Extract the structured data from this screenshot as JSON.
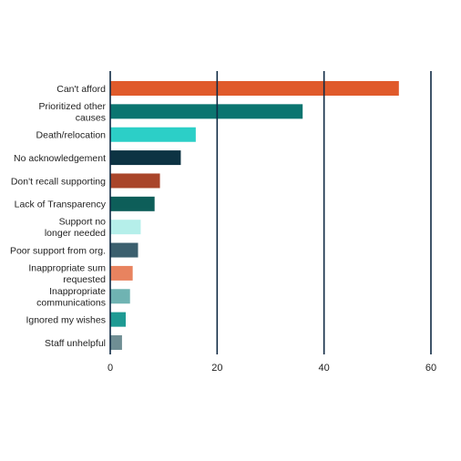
{
  "chart_data": {
    "type": "bar",
    "orientation": "horizontal",
    "categories": [
      [
        "Can't afford"
      ],
      [
        "Prioritized other",
        "causes"
      ],
      [
        "Death/relocation"
      ],
      [
        "No acknowledgement"
      ],
      [
        "Don't recall supporting"
      ],
      [
        "Lack of Transparency"
      ],
      [
        "Support no",
        "longer needed"
      ],
      [
        "Poor support from org."
      ],
      [
        "Inappropriate sum",
        "requested"
      ],
      [
        "Inappropriate",
        "communications"
      ],
      [
        "Ignored my wishes"
      ],
      [
        "Staff unhelpful"
      ]
    ],
    "values": [
      54,
      36,
      16,
      13.2,
      9.3,
      8.3,
      5.7,
      5.2,
      4.2,
      3.7,
      2.9,
      2.2
    ],
    "bar_colors": [
      "#e05a2b",
      "#0b7570",
      "#2ccfc7",
      "#0d3343",
      "#a9452a",
      "#0d5e59",
      "#b5efea",
      "#3b5f6e",
      "#e8835f",
      "#6fb3b2",
      "#1e9a93",
      "#6f8e94"
    ],
    "xlim": [
      0,
      60
    ],
    "xticks": [
      "0",
      "20",
      "40",
      "60"
    ],
    "title": "",
    "xlabel": "",
    "ylabel": "",
    "grid": "vertical",
    "legend": "none"
  }
}
